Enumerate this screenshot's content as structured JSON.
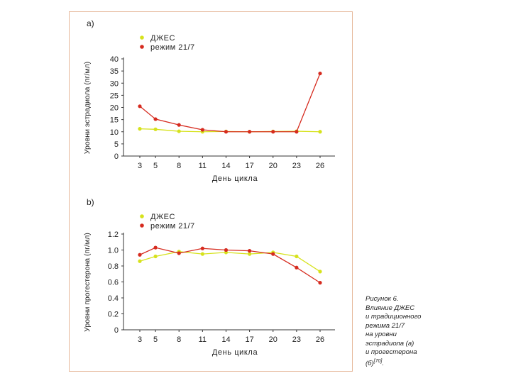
{
  "colors": {
    "series_a": "#d6e21c",
    "series_b": "#d62b1f",
    "axis": "#333333",
    "frame": "#e6b89a"
  },
  "chart_data": [
    {
      "type": "line",
      "panel_label": "a)",
      "xlabel": "День цикла",
      "ylabel": "Уровни эстрадиола (пг/мл)",
      "categories": [
        "3",
        "5",
        "8",
        "11",
        "14",
        "17",
        "20",
        "23",
        "26"
      ],
      "x": [
        3,
        5,
        8,
        11,
        14,
        17,
        20,
        23,
        26
      ],
      "ylim": [
        0,
        40
      ],
      "yticks": [
        0,
        5,
        10,
        15,
        20,
        25,
        30,
        35,
        40
      ],
      "ytick_labels": [
        "0",
        "5",
        "10",
        "15",
        "20",
        "25",
        "30",
        "35",
        "40"
      ],
      "series": [
        {
          "name": "ДЖЕС",
          "color": "#d6e21c",
          "x": [
            3,
            5,
            8,
            11,
            14,
            17,
            20,
            23,
            26
          ],
          "values": [
            11.2,
            11.0,
            10.2,
            10.0,
            10.1,
            10.0,
            10.1,
            10.2,
            10.0
          ]
        },
        {
          "name": "режим 21/7",
          "color": "#d62b1f",
          "x": [
            3,
            5,
            8,
            11,
            14,
            17,
            20,
            23,
            26
          ],
          "values": [
            20.5,
            15.2,
            12.8,
            10.8,
            10.0,
            10.0,
            10.0,
            10.0,
            34.0
          ]
        }
      ]
    },
    {
      "type": "line",
      "panel_label": "b)",
      "xlabel": "День цикла",
      "ylabel": "Уровни прогестерона (пг/мл)",
      "categories": [
        "3",
        "5",
        "8",
        "11",
        "14",
        "17",
        "20",
        "23",
        "26"
      ],
      "x": [
        3,
        5,
        8,
        11,
        14,
        17,
        20,
        23,
        26
      ],
      "ylim": [
        0,
        1.2
      ],
      "yticks": [
        0,
        0.2,
        0.4,
        0.6,
        0.8,
        1.0,
        1.2
      ],
      "ytick_labels": [
        "0",
        "0.2",
        "0.4",
        "0.6",
        "0.8",
        "1.0",
        "1.2"
      ],
      "series": [
        {
          "name": "ДЖЕС",
          "color": "#d6e21c",
          "x": [
            3,
            5,
            8,
            11,
            14,
            17,
            20,
            23,
            26
          ],
          "values": [
            0.86,
            0.92,
            0.98,
            0.95,
            0.97,
            0.95,
            0.97,
            0.92,
            0.73
          ]
        },
        {
          "name": "режим 21/7",
          "color": "#d62b1f",
          "x": [
            3,
            5,
            8,
            11,
            14,
            17,
            20,
            23,
            26
          ],
          "values": [
            0.94,
            1.03,
            0.96,
            1.02,
            1.0,
            0.99,
            0.95,
            0.78,
            0.59
          ]
        }
      ]
    }
  ],
  "caption": {
    "lines": [
      "Рисунок 6.",
      "Влияние ДЖЕС",
      "и традиционного",
      "режима 21/7",
      "на уровни",
      "эстрадиола (а)",
      "и прогестерона"
    ],
    "last_line": "(б)",
    "reference": "[70]",
    "end": "."
  }
}
